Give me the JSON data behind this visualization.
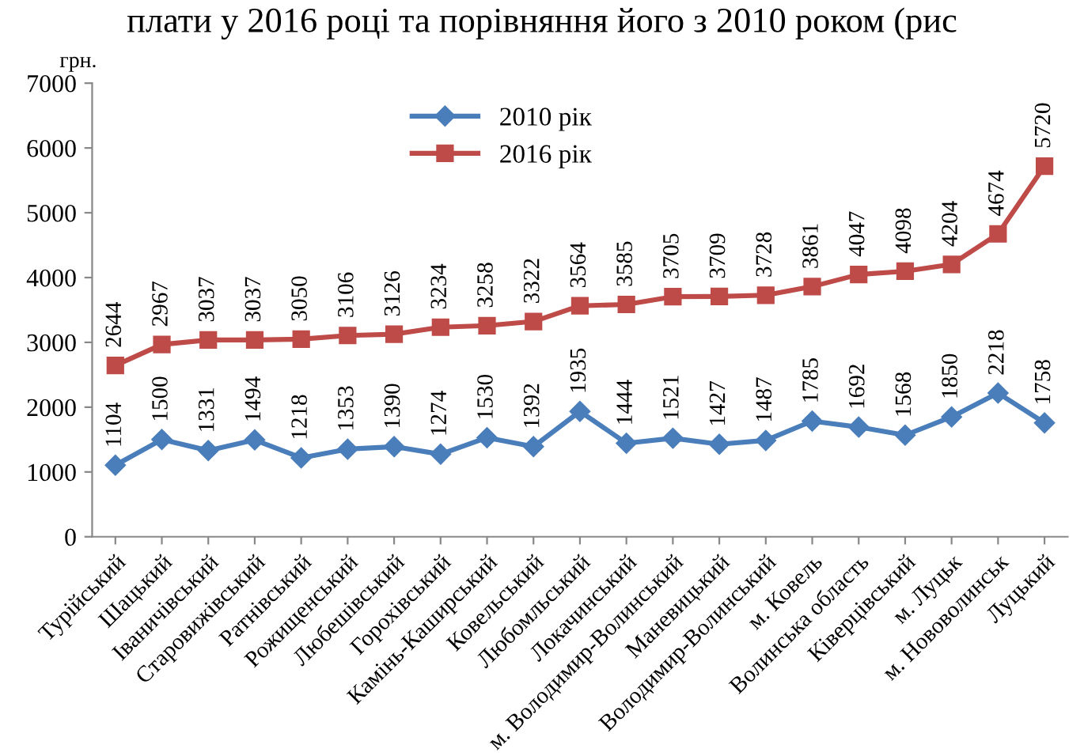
{
  "chart_data": {
    "type": "line",
    "title": "плати у 2016 році та порівняння його з 2010 роком (рис",
    "ylabel": "грн.",
    "categories": [
      "Турійський",
      "Шацький",
      "Іваничівський",
      "Старовижівський",
      "Ратнівський",
      "Рожищенський",
      "Любешівський",
      "Горохівський",
      "Камінь-Каширський",
      "Ковельський",
      "Любомльський",
      "Локачинський",
      "м. Володимир-Волинський",
      "Маневицький",
      "Володимир-Волинський",
      "м. Ковель",
      "Волинська область",
      "Ківерцівський",
      "м. Луцьк",
      "м. Нововолинськ",
      "Луцький"
    ],
    "series": [
      {
        "name": "2010 рік",
        "color": "#4a7ebb",
        "marker": "diamond",
        "values": [
          1104,
          1500,
          1331,
          1494,
          1218,
          1353,
          1390,
          1274,
          1530,
          1392,
          1935,
          1444,
          1521,
          1427,
          1487,
          1785,
          1692,
          1568,
          1850,
          2218,
          1758
        ]
      },
      {
        "name": "2016 рік",
        "color": "#be4b48",
        "marker": "square",
        "values": [
          2644,
          2967,
          3037,
          3037,
          3050,
          3106,
          3126,
          3234,
          3258,
          3322,
          3564,
          3585,
          3705,
          3709,
          3728,
          3861,
          4047,
          4098,
          4204,
          4674,
          5720
        ]
      }
    ],
    "ylim": [
      0,
      7000
    ],
    "yticks": [
      0,
      1000,
      2000,
      3000,
      4000,
      5000,
      6000,
      7000
    ],
    "data_labels": true,
    "legend": "top",
    "grid": false,
    "line_style": "solid"
  }
}
